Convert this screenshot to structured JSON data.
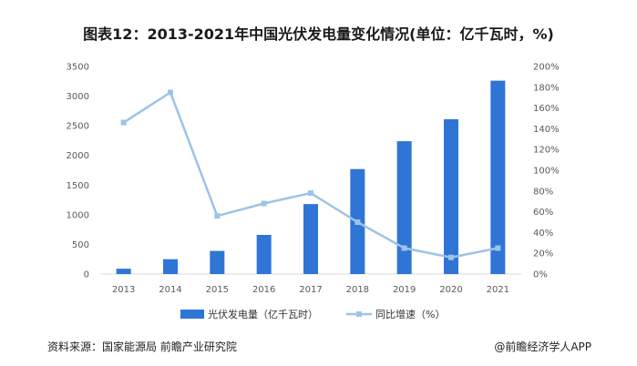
{
  "chart_data": {
    "type": "bar",
    "title": "图表12：2013-2021年中国光伏发电量变化情况(单位：亿千瓦时，%)",
    "categories": [
      "2013",
      "2014",
      "2015",
      "2016",
      "2017",
      "2018",
      "2019",
      "2020",
      "2021"
    ],
    "series": [
      {
        "name": "光伏发电量（亿千瓦时）",
        "type": "bar",
        "axis": "left",
        "color": "#2e75d6",
        "values": [
          90,
          250,
          390,
          660,
          1180,
          1770,
          2240,
          2610,
          3260
        ]
      },
      {
        "name": "同比增速（%）",
        "type": "line",
        "axis": "right",
        "color": "#9dc3e6",
        "values": [
          146,
          175,
          56,
          68,
          78,
          50,
          25,
          16,
          25
        ]
      }
    ],
    "y_left": {
      "min": 0,
      "max": 3500,
      "step": 500
    },
    "y_right": {
      "min": 0,
      "max": 200,
      "step": 20,
      "suffix": "%"
    },
    "legend_position": "bottom",
    "grid": false
  },
  "footer": {
    "source": "资料来源：国家能源局 前瞻产业研究院",
    "credit": "@前瞻经济学人APP"
  }
}
